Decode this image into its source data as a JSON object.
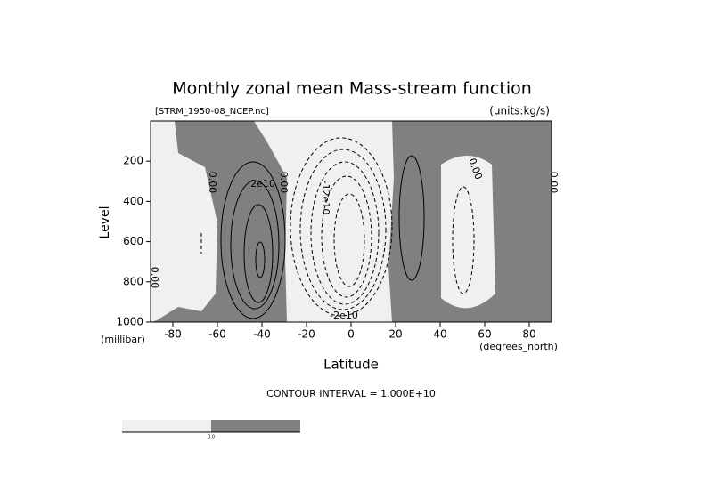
{
  "chart_data": {
    "type": "contour",
    "title": "Monthly zonal mean Mass-stream function",
    "subtitle_left": "[STRM_1950-08_NCEP.nc]",
    "subtitle_right": "(units:kg/s)",
    "y_label": "Level",
    "y_unit": "(millibar)",
    "x_label": "Latitude",
    "x_unit": "(degrees_north)",
    "annotation": "CONTOUR INTERVAL = 1.000E+10",
    "xlim": [
      -90,
      90
    ],
    "xticks": [
      -80,
      -60,
      -40,
      -20,
      0,
      20,
      40,
      60,
      80
    ],
    "ylim": [
      1000,
      0
    ],
    "yticks": [
      200,
      400,
      600,
      800,
      1000
    ],
    "contour_labels": [
      "0.00",
      "2e10",
      "0.00",
      "-12e10",
      "0.00",
      "0.00",
      "0.00",
      "-2e10"
    ],
    "colorbar_labels": [
      "0.0"
    ]
  }
}
